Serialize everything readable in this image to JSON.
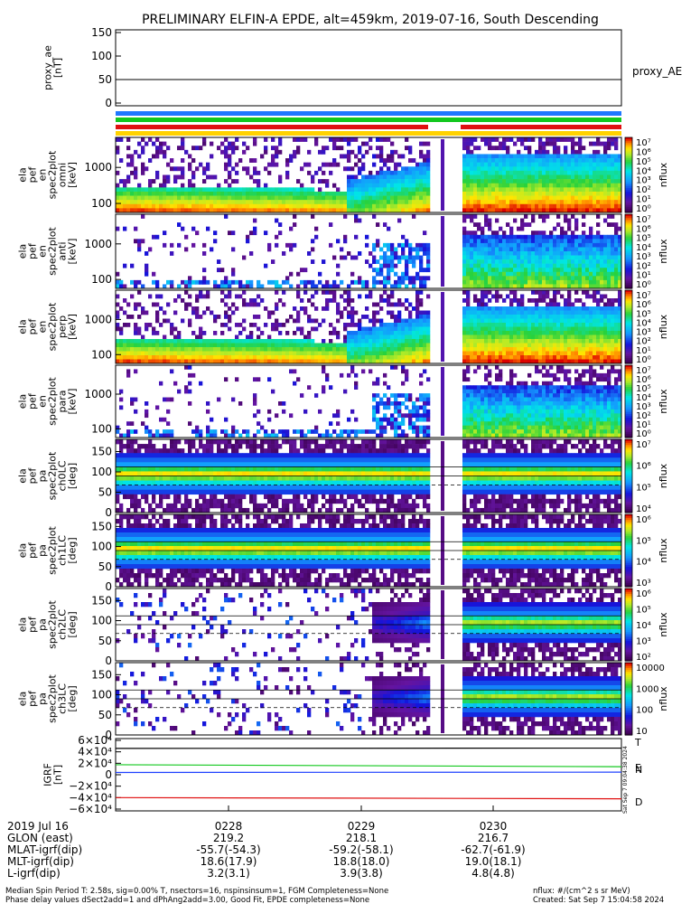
{
  "title": "PRELIMINARY ELFIN-A EPDE, alt=459km, 2019-07-16, South Descending",
  "colors": {
    "blue": "#1e78ff",
    "green": "#12c81e",
    "red": "#e01010",
    "yellow": "#ffd200"
  },
  "chart_data": [
    {
      "type": "line",
      "name": "proxy_ae",
      "ylabel": "proxy_ae\n[nT]",
      "ylim": [
        0,
        150
      ],
      "yticks": [
        "150",
        "100",
        "50",
        "0"
      ],
      "legend": "proxy_AE",
      "series": [
        {
          "name": "proxy_AE",
          "values": [
            50,
            50
          ]
        }
      ]
    },
    {
      "type": "heatmap",
      "name": "omni-energy",
      "ylabel": "ela\npef\nen\nspec2plot\nomni\n[keV]",
      "ylog": true,
      "yticks": [
        "1000",
        "100"
      ],
      "colorbar": {
        "label": "nflux",
        "ticks": [
          "10⁷",
          "10⁶",
          "10⁵",
          "10⁴",
          "10³",
          "10²",
          "10¹",
          "10⁰"
        ]
      }
    },
    {
      "type": "heatmap",
      "name": "anti-energy",
      "ylabel": "ela\npef\nen\nspec2plot\nanti\n[keV]",
      "ylog": true,
      "yticks": [
        "1000",
        "100"
      ],
      "colorbar": {
        "label": "nflux",
        "ticks": [
          "10⁷",
          "10⁶",
          "10⁵",
          "10⁴",
          "10³",
          "10²",
          "10¹",
          "10⁰"
        ]
      }
    },
    {
      "type": "heatmap",
      "name": "perp-energy",
      "ylabel": "ela\npef\nen\nspec2plot\nperp\n[keV]",
      "ylog": true,
      "yticks": [
        "1000",
        "100"
      ],
      "colorbar": {
        "label": "nflux",
        "ticks": [
          "10⁷",
          "10⁶",
          "10⁵",
          "10⁴",
          "10³",
          "10²",
          "10¹",
          "10⁰"
        ]
      }
    },
    {
      "type": "heatmap",
      "name": "para-energy",
      "ylabel": "ela\npef\nen\nspec2plot\npara\n[keV]",
      "ylog": true,
      "yticks": [
        "1000",
        "100"
      ],
      "colorbar": {
        "label": "nflux",
        "ticks": [
          "10⁷",
          "10⁶",
          "10⁵",
          "10⁴",
          "10³",
          "10²",
          "10¹",
          "10⁰"
        ]
      }
    },
    {
      "type": "heatmap",
      "name": "pa-ch0",
      "ylabel": "ela\npef\npa\nspec2plot\nch0LC\n[deg]",
      "ylim": [
        0,
        180
      ],
      "yticks": [
        "150",
        "100",
        "50",
        "0"
      ],
      "colorbar": {
        "label": "nflux",
        "ticks": [
          "10⁷",
          "10⁶",
          "10⁵",
          "10⁴"
        ]
      }
    },
    {
      "type": "heatmap",
      "name": "pa-ch1",
      "ylabel": "ela\npef\npa\nspec2plot\nch1LC\n[deg]",
      "ylim": [
        0,
        180
      ],
      "yticks": [
        "150",
        "100",
        "50",
        "0"
      ],
      "colorbar": {
        "label": "nflux",
        "ticks": [
          "10⁶",
          "10⁵",
          "10⁴",
          "10³"
        ]
      }
    },
    {
      "type": "heatmap",
      "name": "pa-ch2",
      "ylabel": "ela\npef\npa\nspec2plot\nch2LC\n[deg]",
      "ylim": [
        0,
        180
      ],
      "yticks": [
        "150",
        "100",
        "50",
        "0"
      ],
      "colorbar": {
        "label": "nflux",
        "ticks": [
          "10⁶",
          "10⁵",
          "10⁴",
          "10³",
          "10²"
        ]
      }
    },
    {
      "type": "heatmap",
      "name": "pa-ch3",
      "ylabel": "ela\npef\npa\nspec2plot\nch3LC\n[deg]",
      "ylim": [
        0,
        180
      ],
      "yticks": [
        "150",
        "100",
        "50",
        "0"
      ],
      "colorbar": {
        "label": "nflux",
        "ticks": [
          "10000",
          "1000",
          "100",
          "10"
        ]
      }
    },
    {
      "type": "line",
      "name": "igrf",
      "ylabel": "IGRF\n[nT]",
      "ylim": [
        -60000,
        60000
      ],
      "yticks": [
        "6×10⁴",
        "4×10⁴",
        "2×10⁴",
        "0",
        "−2×10⁴",
        "−4×10⁴",
        "−6×10⁴"
      ],
      "legend": [
        "T",
        "N",
        "E",
        "D"
      ],
      "series": [
        {
          "name": "T",
          "values": [
            46000,
            46500
          ]
        },
        {
          "name": "N",
          "values": [
            17500,
            14000
          ]
        },
        {
          "name": "E",
          "values": [
            4000,
            4500
          ]
        },
        {
          "name": "D",
          "values": [
            -40000,
            -42000
          ]
        }
      ]
    }
  ],
  "annotation_side": "Sat Sep 7 09:04:38 2024",
  "xaxis": {
    "date": "2019 Jul 16",
    "rows": [
      {
        "label": "GLON (east)",
        "values": [
          "219.2",
          "218.1",
          "216.7"
        ]
      },
      {
        "label": "MLAT-igrf(dip)",
        "values": [
          "-55.7(-54.3)",
          "-59.2(-58.1)",
          "-62.7(-61.9)"
        ]
      },
      {
        "label": "MLT-igrf(dip)",
        "values": [
          "18.6(17.9)",
          "18.8(18.0)",
          "19.0(18.1)"
        ]
      },
      {
        "label": "L-igrf(dip)",
        "values": [
          "3.2(3.1)",
          "3.9(3.8)",
          "4.8(4.8)"
        ]
      }
    ],
    "ticks": [
      "0228",
      "0229",
      "0230"
    ]
  },
  "footer": {
    "line1": "Median Spin Period T: 2.58s, sig=0.00% T, nsectors=16, nspinsinsum=1, FGM Completeness=None",
    "line2": "Phase delay values dSect2add=1 and dPhAng2add=3.00, Good Fit, EPDE completeness=None",
    "units": "nflux: #/(cm^2 s sr MeV)",
    "created": "Created: Sat Sep  7 15:04:58 2024"
  }
}
